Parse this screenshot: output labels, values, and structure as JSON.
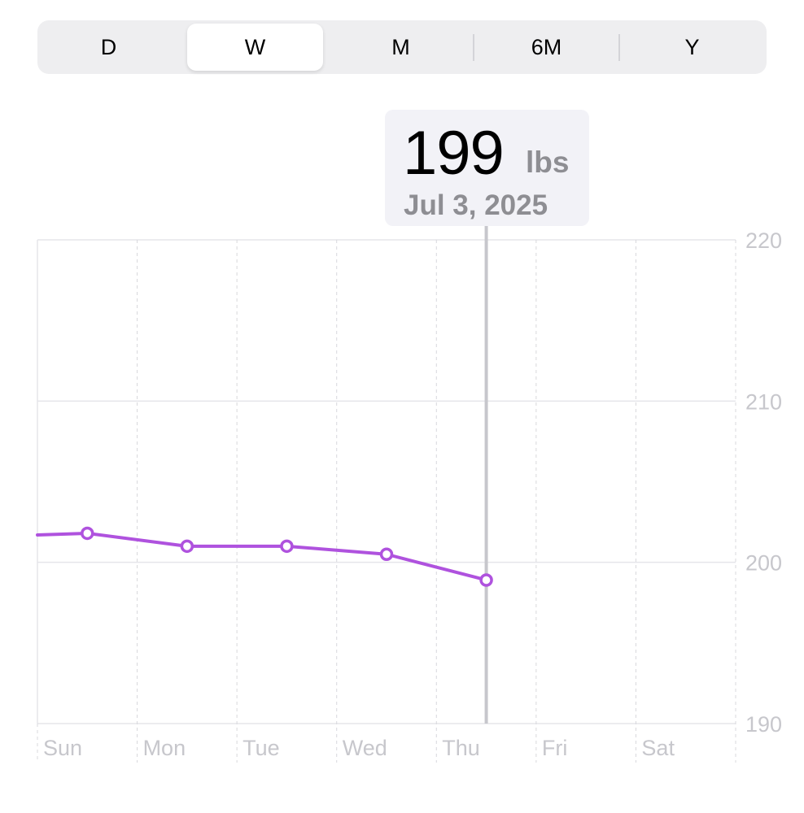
{
  "period_selector": {
    "options": [
      "D",
      "W",
      "M",
      "6M",
      "Y"
    ],
    "selected": "W"
  },
  "callout": {
    "value": "199",
    "unit": "lbs",
    "date": "Jul 3, 2025"
  },
  "colors": {
    "line": "#af52de",
    "grid": "#e5e5ea",
    "axis_text": "#c7c7cc",
    "selection_line": "#c7c7cc",
    "callout_bg": "#f2f2f7"
  },
  "chart_data": {
    "type": "line",
    "categories": [
      "Sun",
      "Mon",
      "Tue",
      "Wed",
      "Thu",
      "Fri",
      "Sat"
    ],
    "series": [
      {
        "x": [
          0.5,
          1.5,
          2.5,
          3.5,
          4.5
        ],
        "values": [
          201.8,
          201.0,
          201.0,
          200.5,
          198.9
        ],
        "incoming_value": 201.7
      }
    ],
    "y_ticks": [
      220,
      210,
      200,
      190
    ],
    "ylim": [
      190,
      220
    ],
    "selected_index": 4,
    "grid": true
  }
}
